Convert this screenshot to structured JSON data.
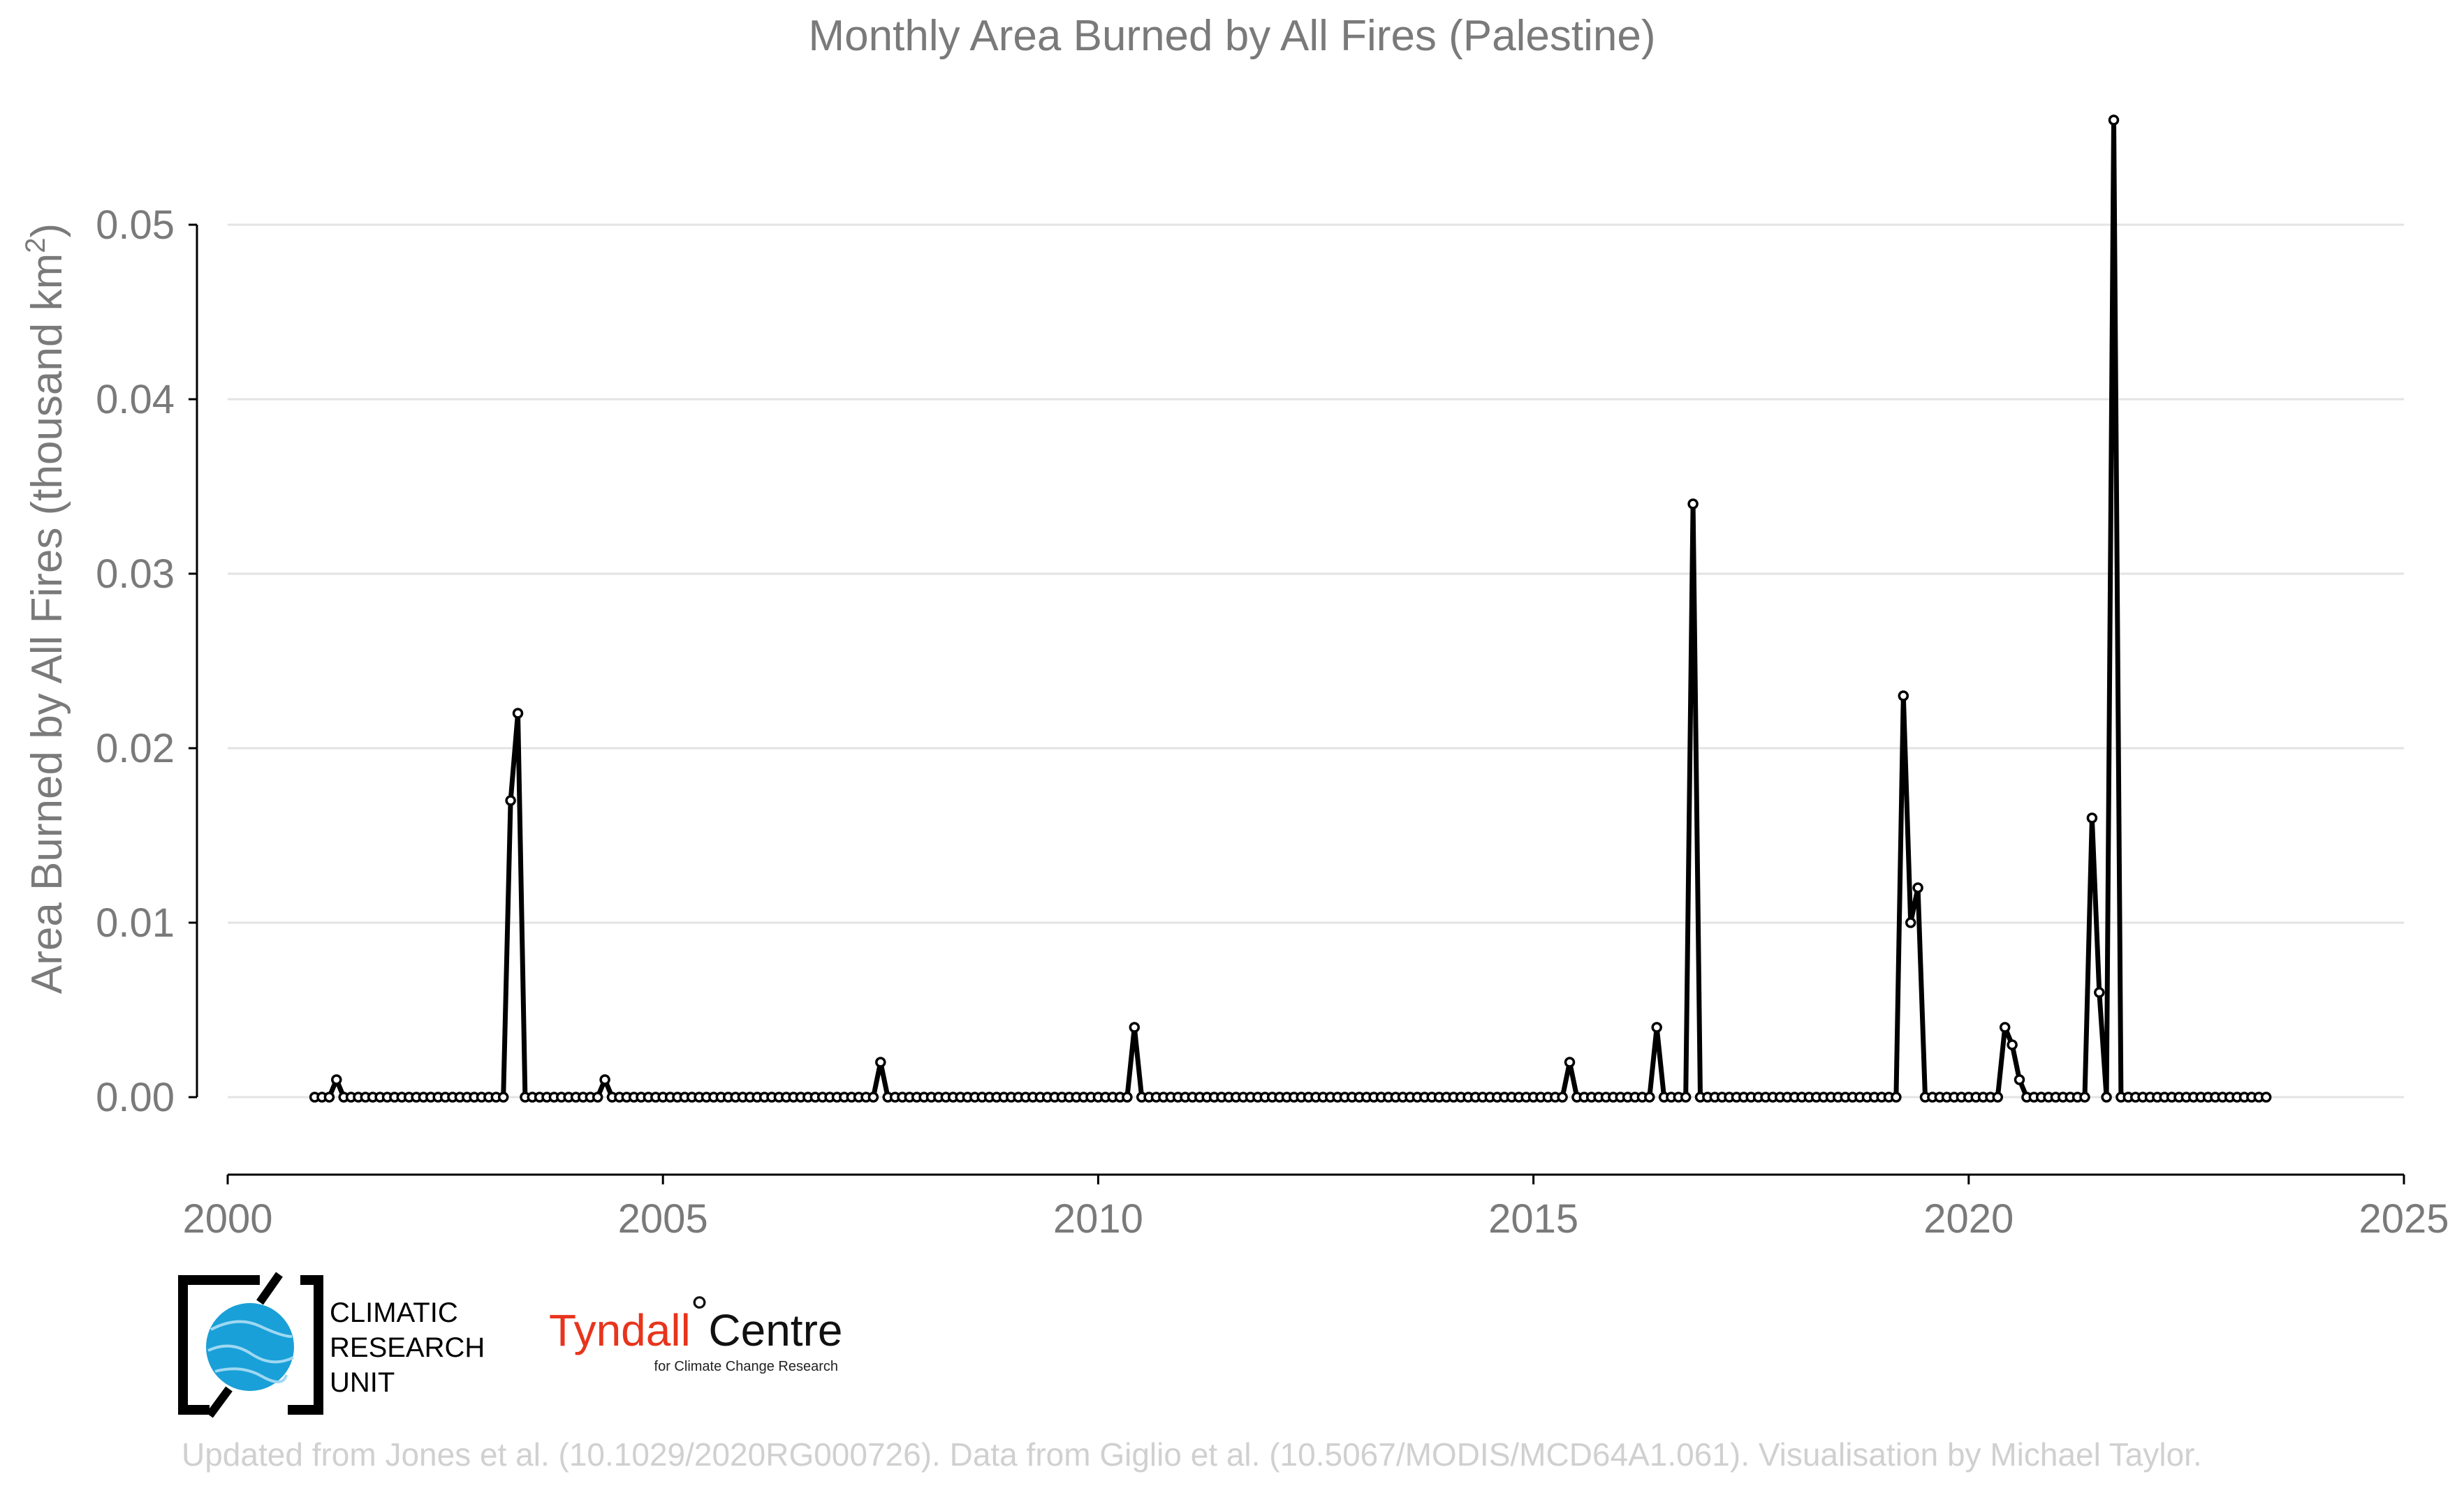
{
  "chart_data": {
    "type": "line",
    "title": "Monthly Area Burned by All Fires (Palestine)",
    "xlabel": "",
    "ylabel": "Area Burned by All Fires (thousand km",
    "ylabel_sup": "2",
    "ylabel_end": ")",
    "xlim": [
      2000,
      2025
    ],
    "ylim": [
      -0.0045,
      0.056
    ],
    "x_ticks": [
      "2000",
      "2005",
      "2010",
      "2015",
      "2020",
      "2025"
    ],
    "y_ticks": [
      "0.00",
      "0.01",
      "0.02",
      "0.03",
      "0.04",
      "0.05"
    ],
    "grid": true,
    "series": [
      {
        "start": "2001-01",
        "frequency": "monthly",
        "values": [
          0,
          0,
          0,
          0.001,
          0,
          0,
          0,
          0,
          0,
          0,
          0,
          0,
          0,
          0,
          0,
          0,
          0,
          0,
          0,
          0,
          0,
          0,
          0,
          0,
          0,
          0,
          0,
          0.017,
          0.022,
          0,
          0,
          0,
          0,
          0,
          0,
          0,
          0,
          0,
          0,
          0,
          0.001,
          0,
          0,
          0,
          0,
          0,
          0,
          0,
          0,
          0,
          0,
          0,
          0,
          0,
          0,
          0,
          0,
          0,
          0,
          0,
          0,
          0,
          0,
          0,
          0,
          0,
          0,
          0,
          0,
          0,
          0,
          0,
          0,
          0,
          0,
          0,
          0,
          0,
          0.002,
          0,
          0,
          0,
          0,
          0,
          0,
          0,
          0,
          0,
          0,
          0,
          0,
          0,
          0,
          0,
          0,
          0,
          0,
          0,
          0,
          0,
          0,
          0,
          0,
          0,
          0,
          0,
          0,
          0,
          0,
          0,
          0,
          0,
          0,
          0.004,
          0,
          0,
          0,
          0,
          0,
          0,
          0,
          0,
          0,
          0,
          0,
          0,
          0,
          0,
          0,
          0,
          0,
          0,
          0,
          0,
          0,
          0,
          0,
          0,
          0,
          0,
          0,
          0,
          0,
          0,
          0,
          0,
          0,
          0,
          0,
          0,
          0,
          0,
          0,
          0,
          0,
          0,
          0,
          0,
          0,
          0,
          0,
          0,
          0,
          0,
          0,
          0,
          0,
          0,
          0,
          0,
          0,
          0,
          0,
          0.002,
          0,
          0,
          0,
          0,
          0,
          0,
          0,
          0,
          0,
          0,
          0,
          0.004,
          0,
          0,
          0,
          0,
          0.034,
          0,
          0,
          0,
          0,
          0,
          0,
          0,
          0,
          0,
          0,
          0,
          0,
          0,
          0,
          0,
          0,
          0,
          0,
          0,
          0,
          0,
          0,
          0,
          0,
          0,
          0,
          0,
          0,
          0.023,
          0.01,
          0.012,
          0,
          0,
          0,
          0,
          0,
          0,
          0,
          0,
          0,
          0,
          0,
          0.004,
          0.003,
          0.001,
          0,
          0,
          0,
          0,
          0,
          0,
          0,
          0,
          0,
          0.016,
          0.006,
          0,
          0.056,
          0,
          0,
          0,
          0,
          0,
          0,
          0,
          0,
          0,
          0,
          0,
          0,
          0,
          0,
          0,
          0,
          0,
          0,
          0,
          0,
          0
        ]
      }
    ]
  },
  "logos": {
    "cru_lines": [
      "CLIMATIC",
      "RESEARCH",
      "UNIT"
    ],
    "cru_color": "#1aa0d8",
    "tyndall_red": "Tyndall",
    "tyndall_degree": "°",
    "tyndall_black": "Centre",
    "tyndall_sub": "for Climate Change Research",
    "tyndall_color": "#e8341c"
  },
  "footer": "Updated from Jones et al. (10.1029/2020RG000726). Data from Giglio et al. (10.5067/MODIS/MCD64A1.061). Visualisation by Michael Taylor."
}
